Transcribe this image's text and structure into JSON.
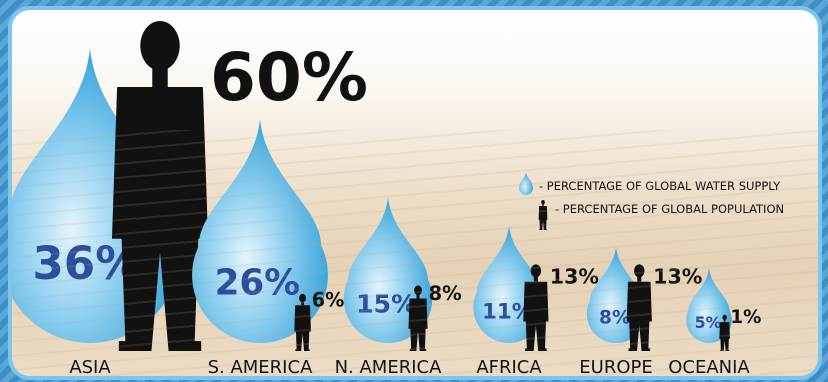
{
  "chart_data": {
    "type": "bar",
    "categories": [
      "ASIA",
      "S. AMERICA",
      "N. AMERICA",
      "AFRICA",
      "EUROPE",
      "OCEANIA"
    ],
    "series": [
      {
        "name": "- PERCENTAGE OF GLOBAL WATER SUPPLY",
        "values": [
          36,
          26,
          15,
          11,
          8,
          5
        ],
        "labels": [
          "36%",
          "26%",
          "15%",
          "11%",
          "8%",
          "5%"
        ]
      },
      {
        "name": "- PERCENTAGE OF GLOBAL POPULATION",
        "values": [
          60,
          6,
          8,
          13,
          13,
          1
        ],
        "labels": [
          "60%",
          "6%",
          "8%",
          "13%",
          "13%",
          "1%"
        ]
      }
    ],
    "legend": "top-right",
    "colors": {
      "water": "#36a9e1",
      "water_light": "#bfe6f8",
      "population": "#111111",
      "frame": "#7cc6ee"
    }
  }
}
